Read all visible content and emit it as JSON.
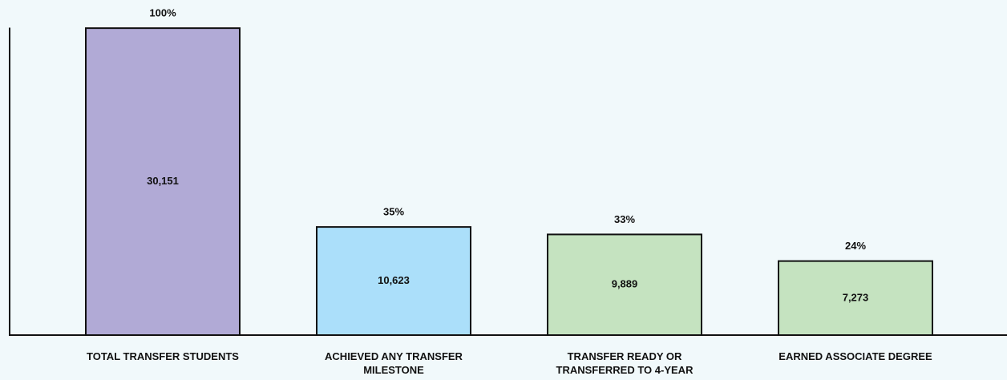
{
  "chart_data": {
    "type": "bar",
    "categories": [
      "TOTAL TRANSFER STUDENTS",
      "ACHIEVED ANY TRANSFER MILESTONE",
      "TRANSFER READY OR TRANSFERRED TO 4-YEAR",
      "EARNED ASSOCIATE DEGREE"
    ],
    "values": [
      30151,
      10623,
      9889,
      7273
    ],
    "value_labels": [
      "30,151",
      "10,623",
      "9,889",
      "7,273"
    ],
    "percent_labels": [
      "100%",
      "35%",
      "33%",
      "24%"
    ],
    "colors": [
      "#b1aad6",
      "#abdffa",
      "#c5e3c0",
      "#c5e3c0"
    ],
    "ylim": [
      0,
      30200
    ]
  }
}
